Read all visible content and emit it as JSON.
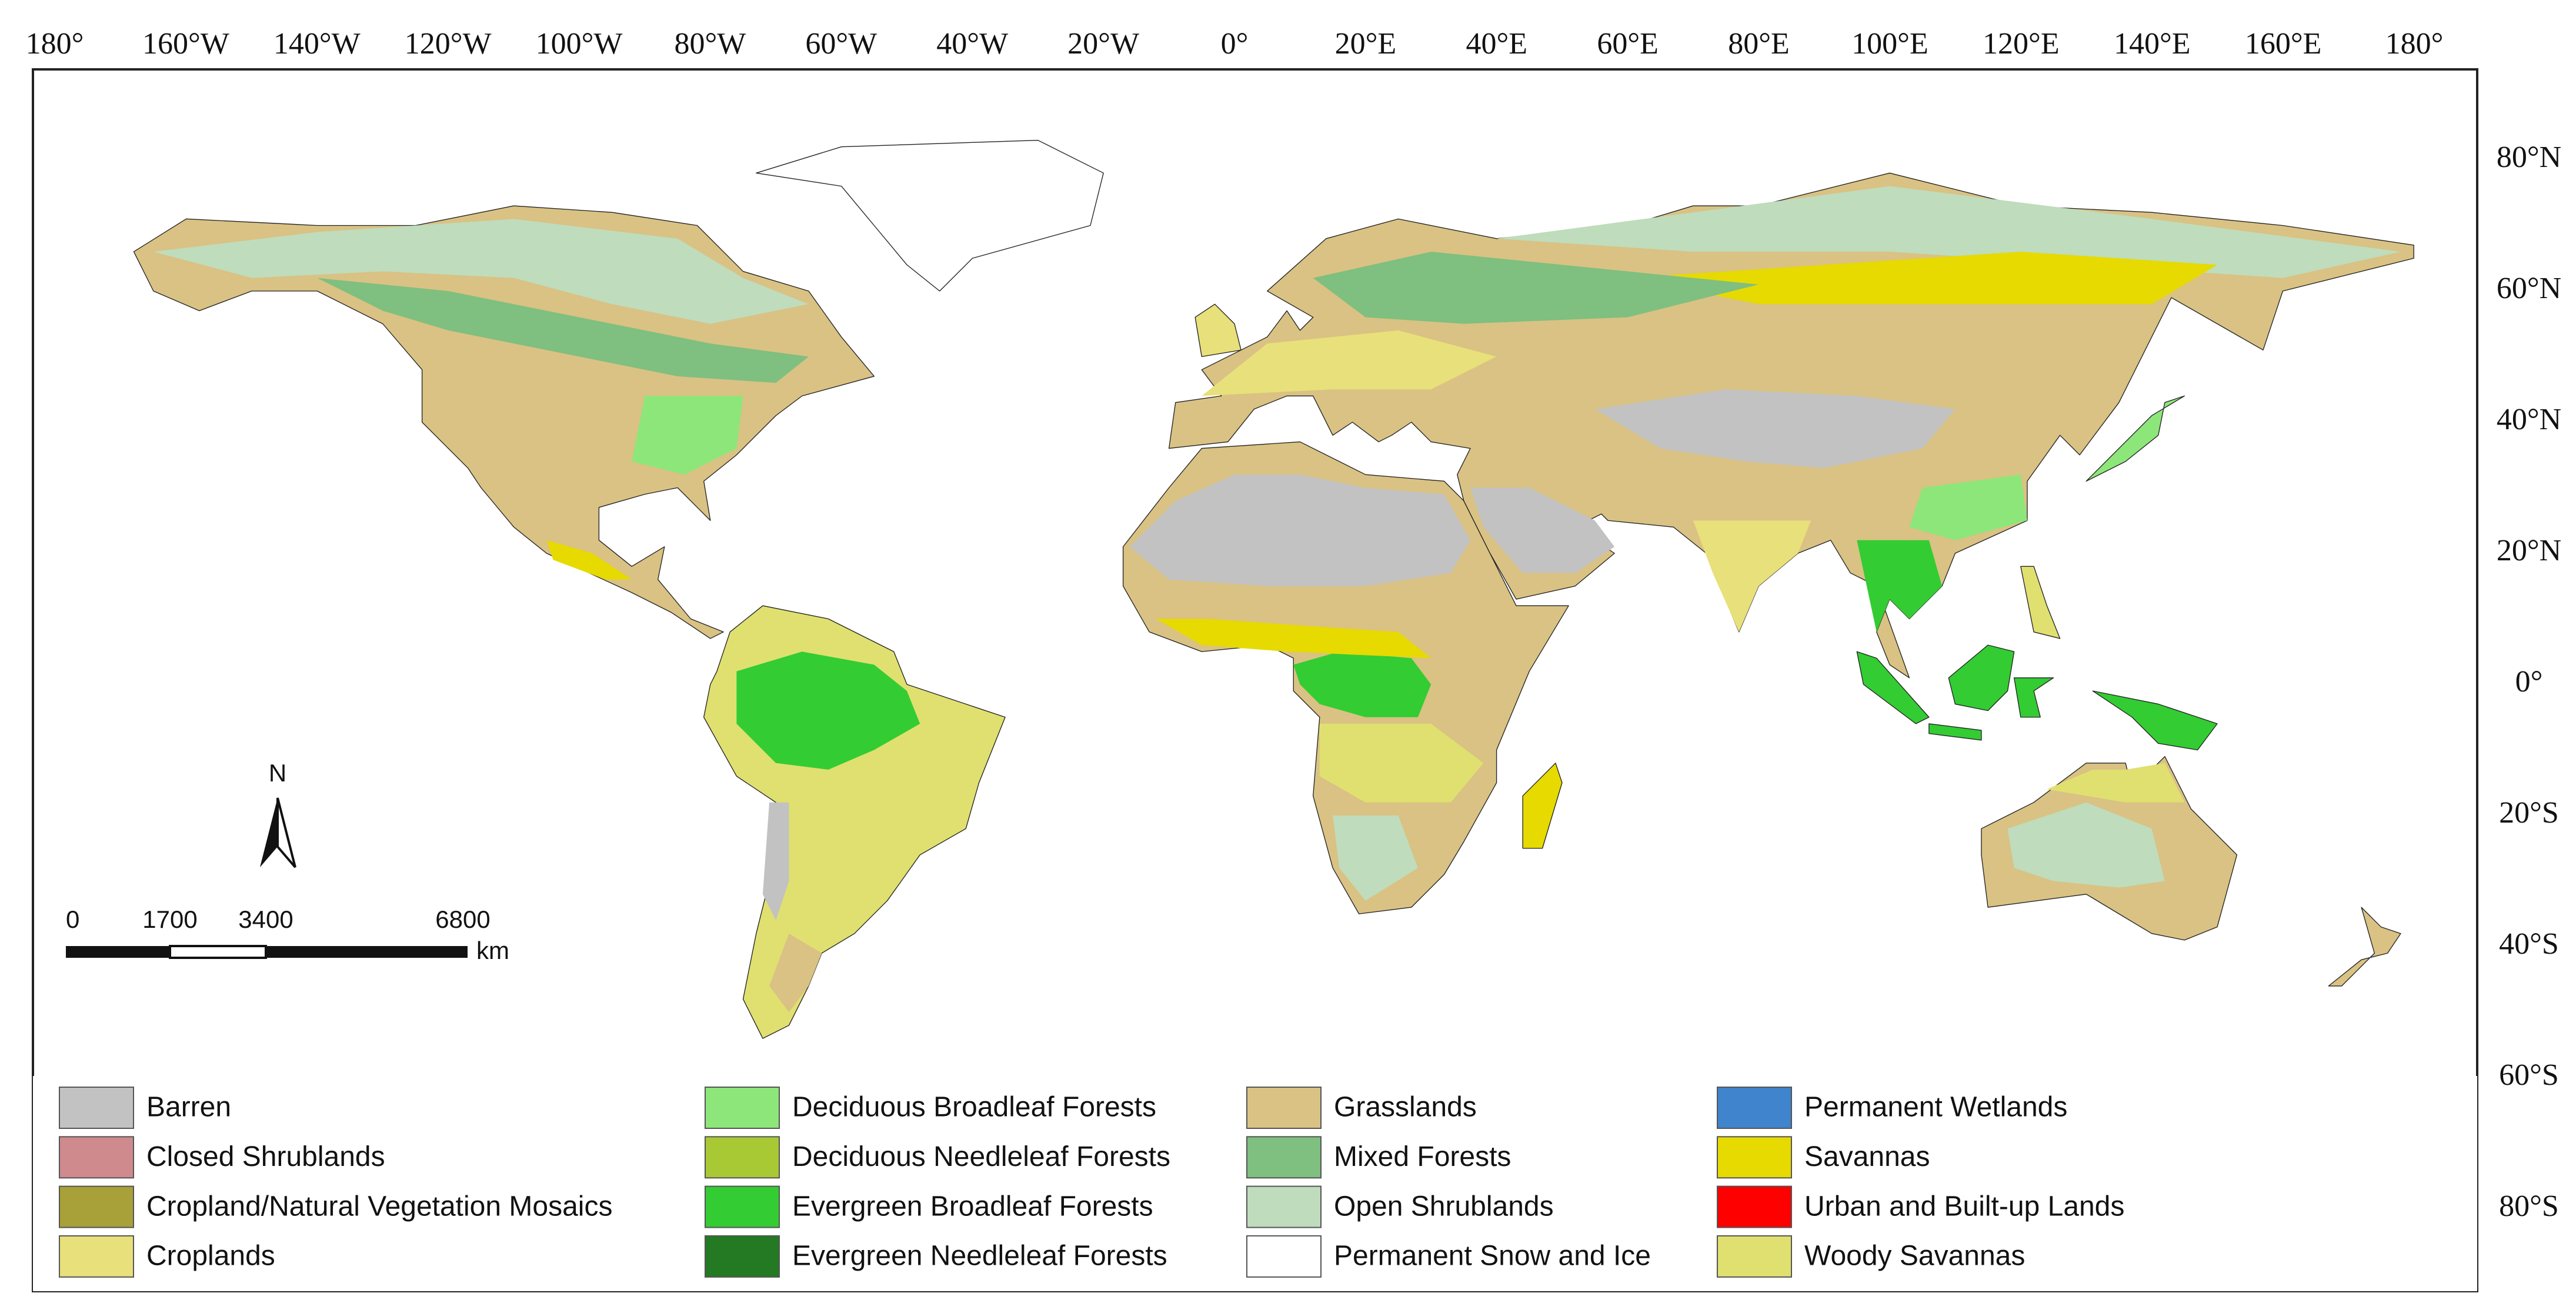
{
  "map": {
    "lon_labels": [
      "180°",
      "160°W",
      "140°W",
      "120°W",
      "100°W",
      "80°W",
      "60°W",
      "40°W",
      "20°W",
      "0°",
      "20°E",
      "40°E",
      "60°E",
      "80°E",
      "100°E",
      "120°E",
      "140°E",
      "160°E",
      "180°"
    ],
    "lat_labels": [
      "80°N",
      "60°N",
      "40°N",
      "20°N",
      "0°",
      "20°S",
      "40°S",
      "60°S",
      "80°S"
    ],
    "north": "N",
    "scale_bar": {
      "labels": [
        "0",
        "1700",
        "3400",
        "6800"
      ],
      "unit": "km"
    },
    "legend": [
      {
        "label": "Barren",
        "color": "#c2c2c2"
      },
      {
        "label": "Closed Shrublands",
        "color": "#cf8a8e"
      },
      {
        "label": "Cropland/Natural Vegetation Mosaics",
        "color": "#a8a038"
      },
      {
        "label": "Croplands",
        "color": "#e8e07a"
      },
      {
        "label": "Deciduous Broadleaf Forests",
        "color": "#8de67a"
      },
      {
        "label": "Deciduous Needleleaf Forests",
        "color": "#a8c834"
      },
      {
        "label": "Evergreen Broadleaf Forests",
        "color": "#33cc33"
      },
      {
        "label": "Evergreen Needleleaf Forests",
        "color": "#237a23"
      },
      {
        "label": "Grasslands",
        "color": "#d9c283"
      },
      {
        "label": "Mixed Forests",
        "color": "#7fbf7f"
      },
      {
        "label": "Open Shrublands",
        "color": "#bfdcbc"
      },
      {
        "label": "Permanent Snow and Ice",
        "color": "#ffffff"
      },
      {
        "label": "Permanent Wetlands",
        "color": "#3f84cc"
      },
      {
        "label": "Savannas",
        "color": "#e6da00"
      },
      {
        "label": "Urban and Built-up Lands",
        "color": "#ff0000"
      },
      {
        "label": "Woody Savannas",
        "color": "#e0e070"
      }
    ]
  }
}
